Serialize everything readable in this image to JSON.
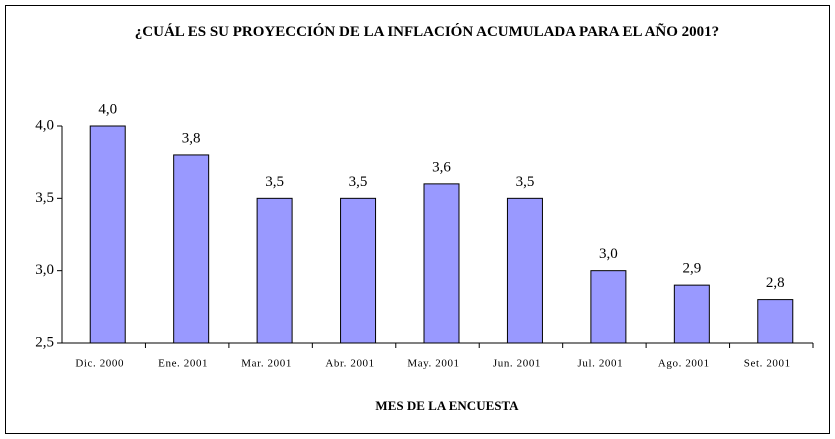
{
  "chart_data": {
    "type": "bar",
    "title": "¿CUÁL ES SU PROYECCIÓN DE LA INFLACIÓN ACUMULADA PARA EL AÑO 2001?",
    "x_label": "MES DE LA ENCUESTA",
    "categories": [
      "Dic. 2000",
      "Ene. 2001",
      "Mar. 2001",
      "Abr. 2001",
      "May. 2001",
      "Jun. 2001",
      "Jul. 2001",
      "Ago. 2001",
      "Set. 2001"
    ],
    "values": [
      4.0,
      3.8,
      3.5,
      3.5,
      3.6,
      3.5,
      3.0,
      2.9,
      2.8
    ],
    "value_labels": [
      "4,0",
      "3,8",
      "3,5",
      "3,5",
      "3,6",
      "3,5",
      "3,0",
      "2,9",
      "2,8"
    ],
    "color": "#9999ff",
    "ylim": [
      2.5,
      4.0
    ],
    "yticks": [
      {
        "value": 2.5,
        "label": "2,5"
      },
      {
        "value": 3.0,
        "label": "3,0"
      },
      {
        "value": 3.5,
        "label": "3,5"
      },
      {
        "value": 4.0,
        "label": "4,0"
      }
    ],
    "grid": false
  }
}
